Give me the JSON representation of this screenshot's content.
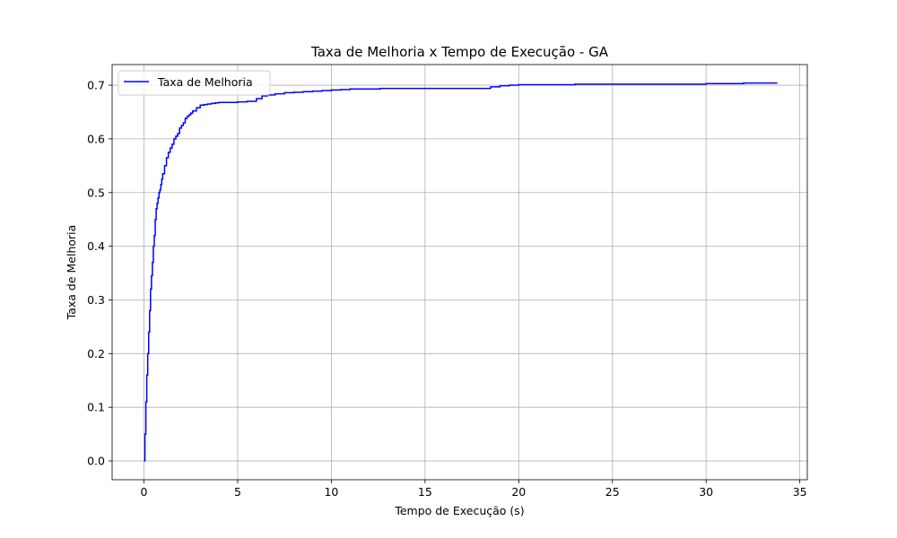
{
  "chart_data": {
    "type": "line",
    "title": "Taxa de Melhoria x Tempo de Execução - GA",
    "xlabel": "Tempo de Execução (s)",
    "ylabel": "Taxa de Melhoria",
    "xlim": [
      -1.7,
      35.4
    ],
    "ylim": [
      -0.035,
      0.7385
    ],
    "xticks": [
      0,
      5,
      10,
      15,
      20,
      25,
      30,
      35
    ],
    "yticks": [
      0.0,
      0.1,
      0.2,
      0.3,
      0.4,
      0.5,
      0.6,
      0.7
    ],
    "xtick_labels": [
      "0",
      "5",
      "10",
      "15",
      "20",
      "25",
      "30",
      "35"
    ],
    "ytick_labels": [
      "0.0",
      "0.1",
      "0.2",
      "0.3",
      "0.4",
      "0.5",
      "0.6",
      "0.7"
    ],
    "grid": true,
    "legend_position": "top-left",
    "series": [
      {
        "name": "Taxa de Melhoria",
        "color": "#0000ff",
        "step": true,
        "x": [
          0,
          0.05,
          0.1,
          0.15,
          0.2,
          0.25,
          0.3,
          0.35,
          0.4,
          0.45,
          0.5,
          0.55,
          0.6,
          0.65,
          0.7,
          0.75,
          0.8,
          0.85,
          0.9,
          0.95,
          1.0,
          1.1,
          1.2,
          1.3,
          1.4,
          1.5,
          1.6,
          1.7,
          1.8,
          1.9,
          2.0,
          2.1,
          2.2,
          2.3,
          2.4,
          2.5,
          2.6,
          2.8,
          3.0,
          3.2,
          3.4,
          3.6,
          3.8,
          4.0,
          4.5,
          5.0,
          5.5,
          6.0,
          6.3,
          6.6,
          7.0,
          7.5,
          8.0,
          8.5,
          9.0,
          9.5,
          10.0,
          10.5,
          11.0,
          12.0,
          12.6,
          14.0,
          15.0,
          16.0,
          18.0,
          18.5,
          19.0,
          19.5,
          20.0,
          21.0,
          22.0,
          23.0,
          24.0,
          26.0,
          28.0,
          30.0,
          31.0,
          32.0,
          33.8
        ],
        "y": [
          0.0,
          0.05,
          0.11,
          0.16,
          0.2,
          0.24,
          0.28,
          0.32,
          0.345,
          0.37,
          0.4,
          0.42,
          0.45,
          0.47,
          0.48,
          0.49,
          0.5,
          0.505,
          0.515,
          0.525,
          0.535,
          0.55,
          0.565,
          0.575,
          0.583,
          0.59,
          0.6,
          0.605,
          0.61,
          0.62,
          0.625,
          0.63,
          0.638,
          0.642,
          0.645,
          0.648,
          0.652,
          0.658,
          0.663,
          0.664,
          0.665,
          0.666,
          0.667,
          0.668,
          0.668,
          0.669,
          0.67,
          0.675,
          0.68,
          0.682,
          0.684,
          0.686,
          0.687,
          0.688,
          0.689,
          0.69,
          0.691,
          0.692,
          0.693,
          0.693,
          0.694,
          0.694,
          0.694,
          0.694,
          0.694,
          0.697,
          0.699,
          0.7,
          0.701,
          0.701,
          0.701,
          0.702,
          0.702,
          0.702,
          0.702,
          0.703,
          0.703,
          0.704,
          0.704
        ]
      }
    ]
  }
}
